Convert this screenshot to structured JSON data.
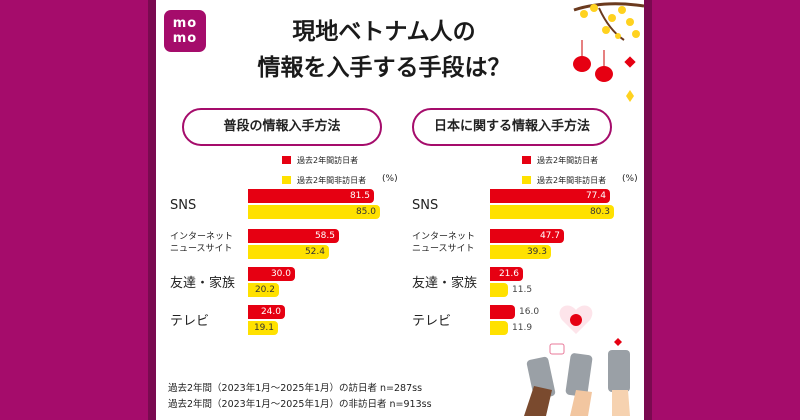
{
  "logo": {
    "line1": "mo",
    "line2": "mo"
  },
  "title": {
    "line1": "現地ベトナム人の",
    "line2": "情報を入手する手段は？"
  },
  "colors": {
    "visited": "#e60012",
    "not_visited": "#ffe100",
    "brand": "#a50c6b"
  },
  "chart_data": [
    {
      "type": "bar",
      "title": "普段の情報入手方法",
      "categories": [
        "SNS",
        "インターネット\nニュースサイト",
        "友達・家族",
        "テレビ"
      ],
      "unit": "(%)",
      "series": [
        {
          "name": "過去2年間訪日者",
          "values": [
            81.5,
            58.5,
            30.0,
            24.0
          ]
        },
        {
          "name": "過去2年間非訪日者",
          "values": [
            85.0,
            52.4,
            20.2,
            19.1
          ]
        }
      ]
    },
    {
      "type": "bar",
      "title": "日本に関する情報入手方法",
      "categories": [
        "SNS",
        "インターネット\nニュースサイト",
        "友達・家族",
        "テレビ"
      ],
      "unit": "(%)",
      "series": [
        {
          "name": "過去2年間訪日者",
          "values": [
            77.4,
            47.7,
            21.6,
            16.0
          ]
        },
        {
          "name": "過去2年間非訪日者",
          "values": [
            80.3,
            39.3,
            11.5,
            11.9
          ]
        }
      ]
    }
  ],
  "footnotes": [
    "過去2年間（2023年1月～2025年1月）の訪日者 n=287ss",
    "過去2年間（2023年1月～2025年1月）の非訪日者 n=913ss"
  ]
}
